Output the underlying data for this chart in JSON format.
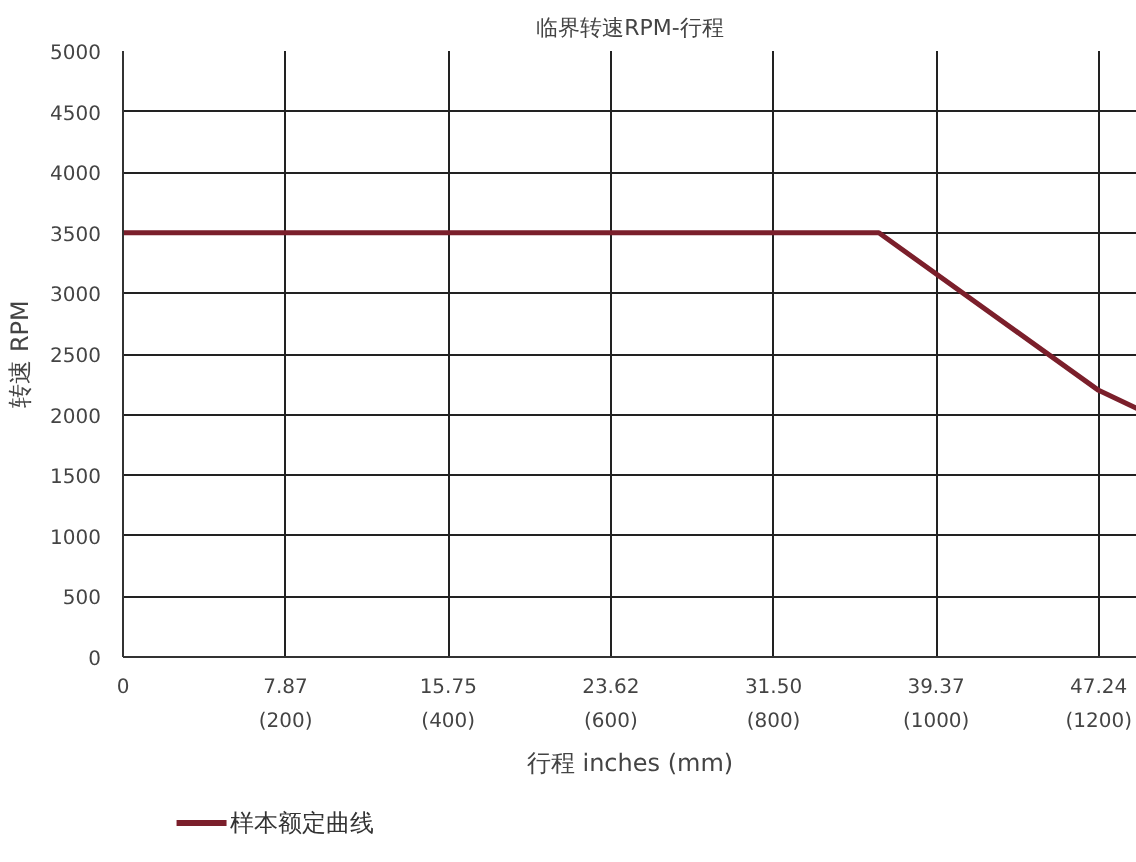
{
  "chart_data": {
    "type": "line",
    "title": "临界转速RPM-行程",
    "xlabel": "行程 inches (mm)",
    "ylabel": "转速 RPM",
    "x": [
      0,
      36.6,
      47.24,
      49.1
    ],
    "series": [
      {
        "name": "样本额定曲线",
        "color": "#7b1f2b",
        "values": [
          3500,
          3500,
          2200,
          2050
        ]
      }
    ],
    "xlim": [
      0,
      49.1
    ],
    "ylim": [
      0,
      5000
    ],
    "xticks": [
      0,
      7.87,
      15.75,
      23.62,
      {
        "value": 31.5,
        "label": "31.50"
      },
      39.37,
      47.24
    ],
    "x2lim": [
      0,
      1247
    ],
    "x2ticks": [
      {
        "value": 200,
        "label": "(200)"
      },
      {
        "value": 400,
        "label": "(400)"
      },
      {
        "value": 600,
        "label": "(600)"
      },
      {
        "value": 800,
        "label": "(800)"
      },
      {
        "value": 1000,
        "label": "(1000)"
      },
      {
        "value": 1200,
        "label": "(1200)"
      }
    ],
    "yticks": [
      0,
      500,
      1000,
      1500,
      2000,
      2500,
      3000,
      3500,
      4000,
      4500,
      5000
    ],
    "grid": true,
    "legend": "bottom left",
    "marker": "none",
    "line_style": "solid"
  }
}
